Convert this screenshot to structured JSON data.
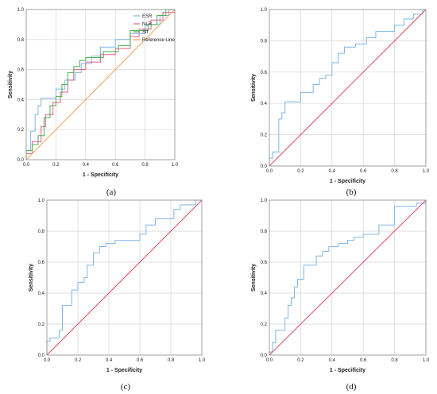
{
  "colors": {
    "ESR": "#7fb6e6",
    "NLR": "#e0608a",
    "SII": "#4caf50",
    "reference_orange": "#f5a35c",
    "reference_red": "#e04a62"
  },
  "chart_data": [
    {
      "type": "line",
      "caption": "(a)",
      "xlabel": "1 - Specificity",
      "ylabel": "Sensitivity",
      "xlim": [
        0,
        1
      ],
      "ylim": [
        0,
        1
      ],
      "ticks": [
        "0.0",
        "0.2",
        "0.4",
        "0.6",
        "0.8",
        "1.0"
      ],
      "grid": true,
      "legend": "top-right",
      "series": [
        {
          "name": "ESR",
          "color_key": "ESR",
          "points": [
            [
              0,
              0
            ],
            [
              0,
              0.06
            ],
            [
              0.03,
              0.06
            ],
            [
              0.03,
              0.19
            ],
            [
              0.06,
              0.19
            ],
            [
              0.06,
              0.3
            ],
            [
              0.08,
              0.3
            ],
            [
              0.08,
              0.36
            ],
            [
              0.1,
              0.36
            ],
            [
              0.1,
              0.41
            ],
            [
              0.2,
              0.41
            ],
            [
              0.2,
              0.47
            ],
            [
              0.26,
              0.47
            ],
            [
              0.26,
              0.53
            ],
            [
              0.33,
              0.53
            ],
            [
              0.33,
              0.58
            ],
            [
              0.37,
              0.58
            ],
            [
              0.37,
              0.64
            ],
            [
              0.44,
              0.64
            ],
            [
              0.44,
              0.69
            ],
            [
              0.5,
              0.69
            ],
            [
              0.5,
              0.75
            ],
            [
              0.6,
              0.75
            ],
            [
              0.6,
              0.8
            ],
            [
              0.7,
              0.8
            ],
            [
              0.7,
              0.84
            ],
            [
              0.8,
              0.84
            ],
            [
              0.8,
              0.9
            ],
            [
              0.9,
              0.9
            ],
            [
              0.9,
              0.96
            ],
            [
              0.96,
              0.96
            ],
            [
              0.96,
              1
            ],
            [
              1,
              1
            ]
          ]
        },
        {
          "name": "NLR",
          "color_key": "NLR",
          "points": [
            [
              0,
              0
            ],
            [
              0,
              0.04
            ],
            [
              0.04,
              0.04
            ],
            [
              0.04,
              0.12
            ],
            [
              0.1,
              0.12
            ],
            [
              0.1,
              0.22
            ],
            [
              0.13,
              0.22
            ],
            [
              0.13,
              0.3
            ],
            [
              0.18,
              0.3
            ],
            [
              0.18,
              0.38
            ],
            [
              0.23,
              0.38
            ],
            [
              0.23,
              0.45
            ],
            [
              0.28,
              0.45
            ],
            [
              0.28,
              0.53
            ],
            [
              0.32,
              0.53
            ],
            [
              0.32,
              0.6
            ],
            [
              0.4,
              0.6
            ],
            [
              0.4,
              0.65
            ],
            [
              0.5,
              0.65
            ],
            [
              0.5,
              0.7
            ],
            [
              0.6,
              0.7
            ],
            [
              0.6,
              0.74
            ],
            [
              0.7,
              0.74
            ],
            [
              0.7,
              0.82
            ],
            [
              0.76,
              0.82
            ],
            [
              0.76,
              0.87
            ],
            [
              0.84,
              0.87
            ],
            [
              0.84,
              0.93
            ],
            [
              0.92,
              0.93
            ],
            [
              0.92,
              0.98
            ],
            [
              1,
              0.98
            ],
            [
              1,
              1
            ]
          ]
        },
        {
          "name": "SII",
          "color_key": "SII",
          "points": [
            [
              0,
              0
            ],
            [
              0,
              0.06
            ],
            [
              0.04,
              0.06
            ],
            [
              0.04,
              0.1
            ],
            [
              0.08,
              0.1
            ],
            [
              0.08,
              0.16
            ],
            [
              0.12,
              0.16
            ],
            [
              0.12,
              0.28
            ],
            [
              0.16,
              0.28
            ],
            [
              0.16,
              0.36
            ],
            [
              0.2,
              0.36
            ],
            [
              0.2,
              0.42
            ],
            [
              0.24,
              0.42
            ],
            [
              0.24,
              0.5
            ],
            [
              0.28,
              0.5
            ],
            [
              0.28,
              0.58
            ],
            [
              0.32,
              0.58
            ],
            [
              0.32,
              0.62
            ],
            [
              0.36,
              0.62
            ],
            [
              0.36,
              0.66
            ],
            [
              0.4,
              0.66
            ],
            [
              0.4,
              0.68
            ],
            [
              0.52,
              0.68
            ],
            [
              0.52,
              0.72
            ],
            [
              0.62,
              0.72
            ],
            [
              0.62,
              0.76
            ],
            [
              0.7,
              0.76
            ],
            [
              0.7,
              0.86
            ],
            [
              0.82,
              0.86
            ],
            [
              0.82,
              0.9
            ],
            [
              0.88,
              0.9
            ],
            [
              0.88,
              0.96
            ],
            [
              0.94,
              0.96
            ],
            [
              0.94,
              1
            ],
            [
              1,
              1
            ]
          ]
        },
        {
          "name": "Reference Line",
          "color_key": "reference_orange",
          "points": [
            [
              0,
              0
            ],
            [
              1,
              1
            ]
          ]
        }
      ]
    },
    {
      "type": "line",
      "caption": "(b)",
      "xlabel": "1 - Specificity",
      "ylabel": "Sensitivity",
      "xlim": [
        0,
        1
      ],
      "ylim": [
        0,
        1
      ],
      "ticks": [
        "0.0",
        "0.2",
        "0.4",
        "0.6",
        "0.8",
        "1.0"
      ],
      "grid": true,
      "series": [
        {
          "color_key": "ESR",
          "points": [
            [
              0,
              0
            ],
            [
              0,
              0.05
            ],
            [
              0.02,
              0.05
            ],
            [
              0.02,
              0.09
            ],
            [
              0.06,
              0.09
            ],
            [
              0.06,
              0.3
            ],
            [
              0.08,
              0.3
            ],
            [
              0.08,
              0.34
            ],
            [
              0.1,
              0.34
            ],
            [
              0.1,
              0.41
            ],
            [
              0.2,
              0.41
            ],
            [
              0.2,
              0.47
            ],
            [
              0.28,
              0.47
            ],
            [
              0.28,
              0.52
            ],
            [
              0.32,
              0.52
            ],
            [
              0.32,
              0.56
            ],
            [
              0.36,
              0.56
            ],
            [
              0.36,
              0.58
            ],
            [
              0.4,
              0.58
            ],
            [
              0.4,
              0.66
            ],
            [
              0.44,
              0.66
            ],
            [
              0.44,
              0.72
            ],
            [
              0.48,
              0.72
            ],
            [
              0.48,
              0.76
            ],
            [
              0.55,
              0.76
            ],
            [
              0.55,
              0.78
            ],
            [
              0.62,
              0.78
            ],
            [
              0.62,
              0.82
            ],
            [
              0.68,
              0.82
            ],
            [
              0.68,
              0.86
            ],
            [
              0.8,
              0.86
            ],
            [
              0.8,
              0.9
            ],
            [
              0.86,
              0.9
            ],
            [
              0.86,
              0.94
            ],
            [
              0.92,
              0.94
            ],
            [
              0.92,
              0.97
            ],
            [
              0.98,
              0.97
            ],
            [
              0.98,
              1
            ],
            [
              1,
              1
            ]
          ]
        },
        {
          "color_key": "reference_red",
          "points": [
            [
              0,
              0
            ],
            [
              1,
              1
            ]
          ]
        }
      ]
    },
    {
      "type": "line",
      "caption": "(c)",
      "xlabel": "1 - Specificity",
      "ylabel": "Sensitivity",
      "xlim": [
        0,
        1
      ],
      "ylim": [
        0,
        1
      ],
      "ticks": [
        "0.0",
        "0.2",
        "0.4",
        "0.6",
        "0.8",
        "1.0"
      ],
      "grid": true,
      "series": [
        {
          "color_key": "ESR",
          "points": [
            [
              0,
              0
            ],
            [
              0,
              0.09
            ],
            [
              0.02,
              0.09
            ],
            [
              0.02,
              0.11
            ],
            [
              0.08,
              0.11
            ],
            [
              0.08,
              0.16
            ],
            [
              0.1,
              0.16
            ],
            [
              0.1,
              0.32
            ],
            [
              0.16,
              0.32
            ],
            [
              0.16,
              0.42
            ],
            [
              0.2,
              0.42
            ],
            [
              0.2,
              0.47
            ],
            [
              0.24,
              0.47
            ],
            [
              0.24,
              0.5
            ],
            [
              0.26,
              0.5
            ],
            [
              0.26,
              0.58
            ],
            [
              0.3,
              0.58
            ],
            [
              0.3,
              0.66
            ],
            [
              0.34,
              0.66
            ],
            [
              0.34,
              0.7
            ],
            [
              0.38,
              0.7
            ],
            [
              0.38,
              0.72
            ],
            [
              0.44,
              0.72
            ],
            [
              0.44,
              0.74
            ],
            [
              0.6,
              0.74
            ],
            [
              0.6,
              0.78
            ],
            [
              0.64,
              0.78
            ],
            [
              0.64,
              0.84
            ],
            [
              0.7,
              0.84
            ],
            [
              0.7,
              0.88
            ],
            [
              0.82,
              0.88
            ],
            [
              0.82,
              0.94
            ],
            [
              0.86,
              0.94
            ],
            [
              0.86,
              0.97
            ],
            [
              0.96,
              0.97
            ],
            [
              0.96,
              1
            ],
            [
              1,
              1
            ]
          ]
        },
        {
          "color_key": "reference_red",
          "points": [
            [
              0,
              0
            ],
            [
              1,
              1
            ]
          ]
        }
      ]
    },
    {
      "type": "line",
      "caption": "(d)",
      "xlabel": "1 - Specificity",
      "ylabel": "Sensitivity",
      "xlim": [
        0,
        1
      ],
      "ylim": [
        0,
        1
      ],
      "ticks": [
        "0.0",
        "0.2",
        "0.4",
        "0.6",
        "0.8",
        "1.0"
      ],
      "grid": true,
      "series": [
        {
          "color_key": "ESR",
          "points": [
            [
              0,
              0
            ],
            [
              0,
              0.02
            ],
            [
              0.02,
              0.02
            ],
            [
              0.02,
              0.08
            ],
            [
              0.04,
              0.08
            ],
            [
              0.04,
              0.16
            ],
            [
              0.1,
              0.16
            ],
            [
              0.1,
              0.24
            ],
            [
              0.12,
              0.24
            ],
            [
              0.12,
              0.32
            ],
            [
              0.14,
              0.32
            ],
            [
              0.14,
              0.37
            ],
            [
              0.16,
              0.37
            ],
            [
              0.16,
              0.44
            ],
            [
              0.18,
              0.44
            ],
            [
              0.18,
              0.49
            ],
            [
              0.22,
              0.49
            ],
            [
              0.22,
              0.58
            ],
            [
              0.3,
              0.58
            ],
            [
              0.3,
              0.64
            ],
            [
              0.34,
              0.64
            ],
            [
              0.34,
              0.67
            ],
            [
              0.38,
              0.67
            ],
            [
              0.38,
              0.7
            ],
            [
              0.44,
              0.7
            ],
            [
              0.44,
              0.72
            ],
            [
              0.5,
              0.72
            ],
            [
              0.5,
              0.74
            ],
            [
              0.54,
              0.74
            ],
            [
              0.54,
              0.76
            ],
            [
              0.6,
              0.76
            ],
            [
              0.6,
              0.78
            ],
            [
              0.7,
              0.78
            ],
            [
              0.7,
              0.84
            ],
            [
              0.8,
              0.84
            ],
            [
              0.8,
              0.96
            ],
            [
              0.94,
              0.96
            ],
            [
              0.94,
              0.98
            ],
            [
              1,
              0.98
            ],
            [
              1,
              1
            ]
          ]
        },
        {
          "color_key": "reference_red",
          "points": [
            [
              0,
              0
            ],
            [
              1,
              1
            ]
          ]
        }
      ]
    }
  ]
}
